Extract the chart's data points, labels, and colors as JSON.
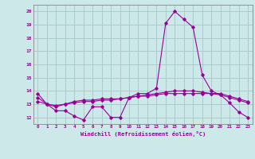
{
  "x_hours": [
    0,
    1,
    2,
    3,
    4,
    5,
    6,
    7,
    8,
    9,
    10,
    11,
    12,
    13,
    14,
    15,
    16,
    17,
    18,
    19,
    20,
    21,
    22,
    23
  ],
  "line1": [
    13.8,
    13.0,
    12.5,
    12.5,
    12.1,
    11.8,
    12.8,
    12.8,
    12.0,
    12.0,
    13.5,
    13.8,
    13.8,
    14.2,
    19.1,
    20.0,
    19.4,
    18.8,
    15.2,
    14.0,
    13.7,
    13.1,
    12.4,
    12.0
  ],
  "line2": [
    13.5,
    13.0,
    12.8,
    13.0,
    13.2,
    13.3,
    13.3,
    13.4,
    13.4,
    13.4,
    13.5,
    13.6,
    13.6,
    13.7,
    13.8,
    13.8,
    13.8,
    13.8,
    13.8,
    13.8,
    13.8,
    13.6,
    13.4,
    13.2
  ],
  "line3": [
    13.2,
    13.0,
    12.9,
    13.0,
    13.1,
    13.2,
    13.2,
    13.3,
    13.3,
    13.4,
    13.5,
    13.6,
    13.7,
    13.8,
    13.9,
    14.0,
    14.0,
    14.0,
    13.9,
    13.8,
    13.7,
    13.5,
    13.3,
    13.1
  ],
  "line_color": "#990099",
  "bg_color": "#cce8e8",
  "grid_color": "#aacccc",
  "xlabel": "Windchill (Refroidissement éolien,°C)",
  "ylim": [
    11.5,
    20.5
  ],
  "xlim": [
    -0.5,
    23.5
  ],
  "yticks": [
    12,
    13,
    14,
    15,
    16,
    17,
    18,
    19,
    20
  ],
  "xticks": [
    0,
    1,
    2,
    3,
    4,
    5,
    6,
    7,
    8,
    9,
    10,
    11,
    12,
    13,
    14,
    15,
    16,
    17,
    18,
    19,
    20,
    21,
    22,
    23
  ]
}
